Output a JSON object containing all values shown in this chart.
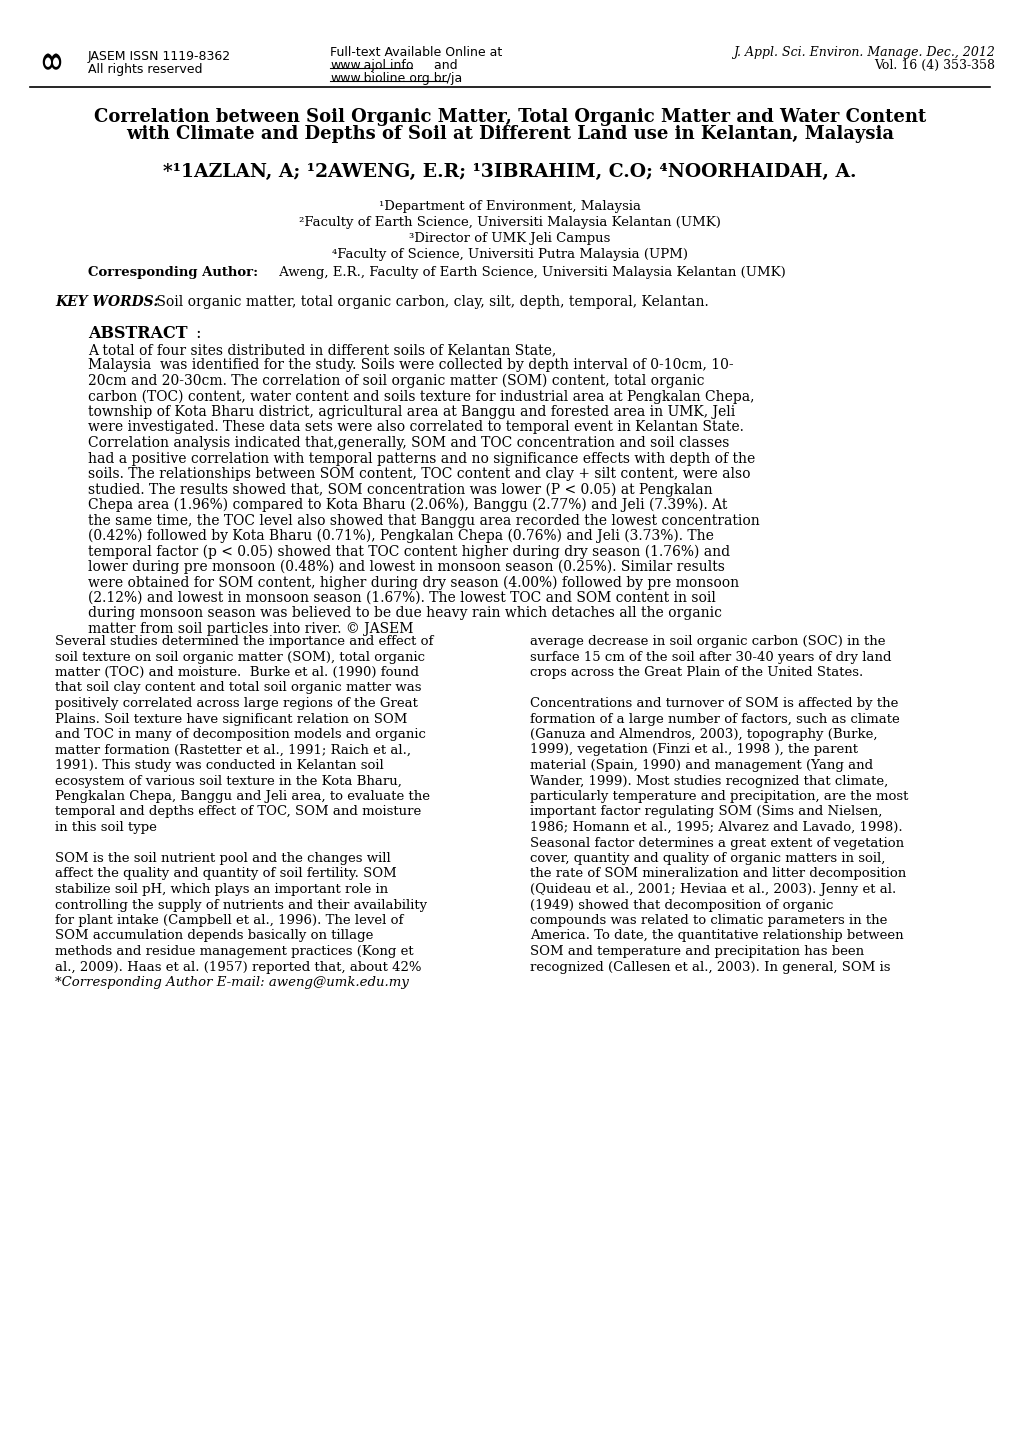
{
  "page_bg": "#ffffff",
  "header_left_line1": "JASEM ISSN 1119-8362",
  "header_left_line2": "All rights reserved",
  "header_mid_line1": "Full-text Available Online at",
  "header_mid_line2": "www.ajol.info    and",
  "header_mid_line3": "www.bioline.org.br/ja",
  "header_right_line1": "J. Appl. Sci. Environ. Manage. Dec., 2012",
  "header_right_line2": "Vol. 16 (4) 353-358",
  "title_line1": "Correlation between Soil Organic Matter, Total Organic Matter and Water Content",
  "title_line2": "with Climate and Depths of Soil at Different Land use in Kelantan, Malaysia",
  "affil1": "¹Department of Environment, Malaysia",
  "affil2": "²Faculty of Earth Science, Universiti Malaysia Kelantan (UMK)",
  "affil3": "³Director of UMK Jeli Campus",
  "affil4": "⁴Faculty of Science, Universiti Putra Malaysia (UPM)",
  "keywords_label": "KEY WORDS:",
  "keywords_text": " Soil organic matter, total organic carbon, clay, silt, depth, temporal, Kelantan.",
  "abstract_label": "ABSTRACT",
  "abstract_lines": [
    "A total of four sites distributed in different soils of Kelantan State,",
    "Malaysia  was identified for the study. Soils were collected by depth interval of 0-10cm, 10-",
    "20cm and 20-30cm. The correlation of soil organic matter (SOM) content, total organic",
    "carbon (TOC) content, water content and soils texture for industrial area at Pengkalan Chepa,",
    "township of Kota Bharu district, agricultural area at Banggu and forested area in UMK, Jeli",
    "were investigated. These data sets were also correlated to temporal event in Kelantan State.",
    "Correlation analysis indicated that,generally, SOM and TOC concentration and soil classes",
    "had a positive correlation with temporal patterns and no significance effects with depth of the",
    "soils. The relationships between SOM content, TOC content and clay + silt content, were also",
    "studied. The results showed that, SOM concentration was lower (P < 0.05) at Pengkalan",
    "Chepa area (1.96%) compared to Kota Bharu (2.06%), Banggu (2.77%) and Jeli (7.39%). At",
    "the same time, the TOC level also showed that Banggu area recorded the lowest concentration",
    "(0.42%) followed by Kota Bharu (0.71%), Pengkalan Chepa (0.76%) and Jeli (3.73%). The",
    "temporal factor (p < 0.05) showed that TOC content higher during dry season (1.76%) and",
    "lower during pre monsoon (0.48%) and lowest in monsoon season (0.25%). Similar results",
    "were obtained for SOM content, higher during dry season (4.00%) followed by pre monsoon",
    "(2.12%) and lowest in monsoon season (1.67%). The lowest TOC and SOM content in soil",
    "during monsoon season was believed to be due heavy rain which detaches all the organic",
    "matter from soil particles into river. © JASEM"
  ],
  "left_col_lines": [
    "Several studies determined the importance and effect of",
    "soil texture on soil organic matter (SOM), total organic",
    "matter (TOC) and moisture.  Burke et al. (1990) found",
    "that soil clay content and total soil organic matter was",
    "positively correlated across large regions of the Great",
    "Plains. Soil texture have significant relation on SOM",
    "and TOC in many of decomposition models and organic",
    "matter formation (Rastetter et al., 1991; Raich et al.,",
    "1991). This study was conducted in Kelantan soil",
    "ecosystem of various soil texture in the Kota Bharu,",
    "Pengkalan Chepa, Banggu and Jeli area, to evaluate the",
    "temporal and depths effect of TOC, SOM and moisture",
    "in this soil type",
    "",
    "SOM is the soil nutrient pool and the changes will",
    "affect the quality and quantity of soil fertility. SOM",
    "stabilize soil pH, which plays an important role in",
    "controlling the supply of nutrients and their availability",
    "for plant intake (Campbell et al., 1996). The level of",
    "SOM accumulation depends basically on tillage",
    "methods and residue management practices (Kong et",
    "al., 2009). Haas et al. (1957) reported that, about 42%",
    "*Corresponding Author E-mail: aweng@umk.edu.my"
  ],
  "right_col_lines": [
    "average decrease in soil organic carbon (SOC) in the",
    "surface 15 cm of the soil after 30-40 years of dry land",
    "crops across the Great Plain of the United States.",
    "",
    "Concentrations and turnover of SOM is affected by the",
    "formation of a large number of factors, such as climate",
    "(Ganuza and Almendros, 2003), topography (Burke,",
    "1999), vegetation (Finzi et al., 1998 ), the parent",
    "material (Spain, 1990) and management (Yang and",
    "Wander, 1999). Most studies recognized that climate,",
    "particularly temperature and precipitation, are the most",
    "important factor regulating SOM (Sims and Nielsen,",
    "1986; Homann et al., 1995; Alvarez and Lavado, 1998).",
    "Seasonal factor determines a great extent of vegetation",
    "cover, quantity and quality of organic matters in soil,",
    "the rate of SOM mineralization and litter decomposition",
    "(Quideau et al., 2001; Heviaa et al., 2003). Jenny et al.",
    "(1949) showed that decomposition of organic",
    "compounds was related to climatic parameters in the",
    "America. To date, the quantitative relationship between",
    "SOM and temperature and precipitation has been",
    "recognized (Callesen et al., 2003). In general, SOM is"
  ]
}
